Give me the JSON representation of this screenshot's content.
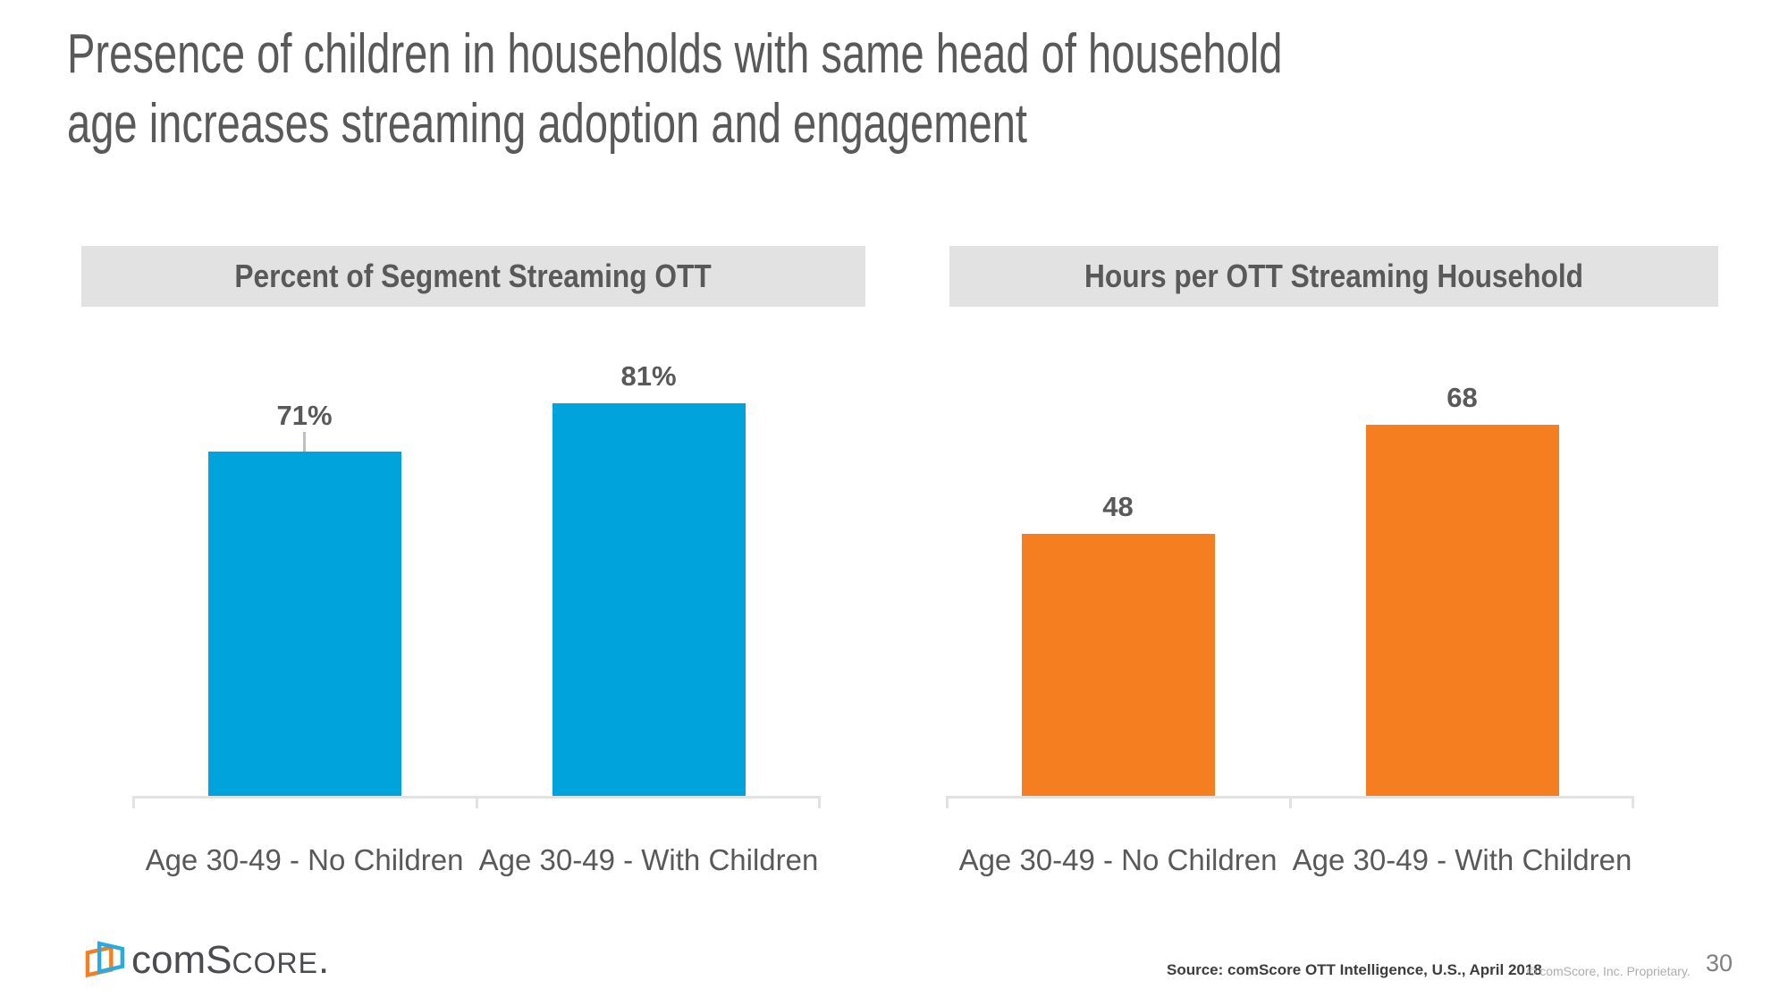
{
  "page": {
    "title_lines": [
      "Presence of children in households with same head of household",
      "age increases streaming adoption and engagement"
    ]
  },
  "chart_data": [
    {
      "type": "bar",
      "title": "Percent of Segment Streaming OTT",
      "categories": [
        "Age 30-49 - No Children",
        "Age 30-49 - With Children"
      ],
      "values": [
        71,
        81
      ],
      "value_labels": [
        "71%",
        "81%"
      ],
      "unit": "percent",
      "ylim": [
        0,
        100
      ],
      "bar_color": "#00a3dc",
      "grid": false,
      "legend_position": "none",
      "xlabel": "",
      "ylabel": ""
    },
    {
      "type": "bar",
      "title": "Hours per OTT Streaming Household",
      "categories": [
        "Age 30-49 - No Children",
        "Age 30-49 - With Children"
      ],
      "values": [
        48,
        68
      ],
      "value_labels": [
        "48",
        "68"
      ],
      "unit": "hours",
      "ylim": [
        0,
        80
      ],
      "bar_color": "#f57e20",
      "grid": false,
      "legend_position": "none",
      "xlabel": "",
      "ylabel": ""
    }
  ],
  "footer": {
    "logo": {
      "icon": "comscore-logo-icon",
      "com": "com",
      "s": "S",
      "core": "CORE",
      "period": "."
    },
    "source": "Source: comScore OTT Intelligence, U.S., April 2018",
    "copyright": "© comScore, Inc. Proprietary.",
    "page_number": "30"
  },
  "colors": {
    "accent_blue": "#00a3dc",
    "accent_orange": "#f57e20",
    "text_gray": "#595959",
    "header_band_bg": "#e2e2e2",
    "axis_line": "#e2e2e2",
    "leader_line": "#bfbfbf",
    "logo_wordmark": "#4a4c50"
  }
}
